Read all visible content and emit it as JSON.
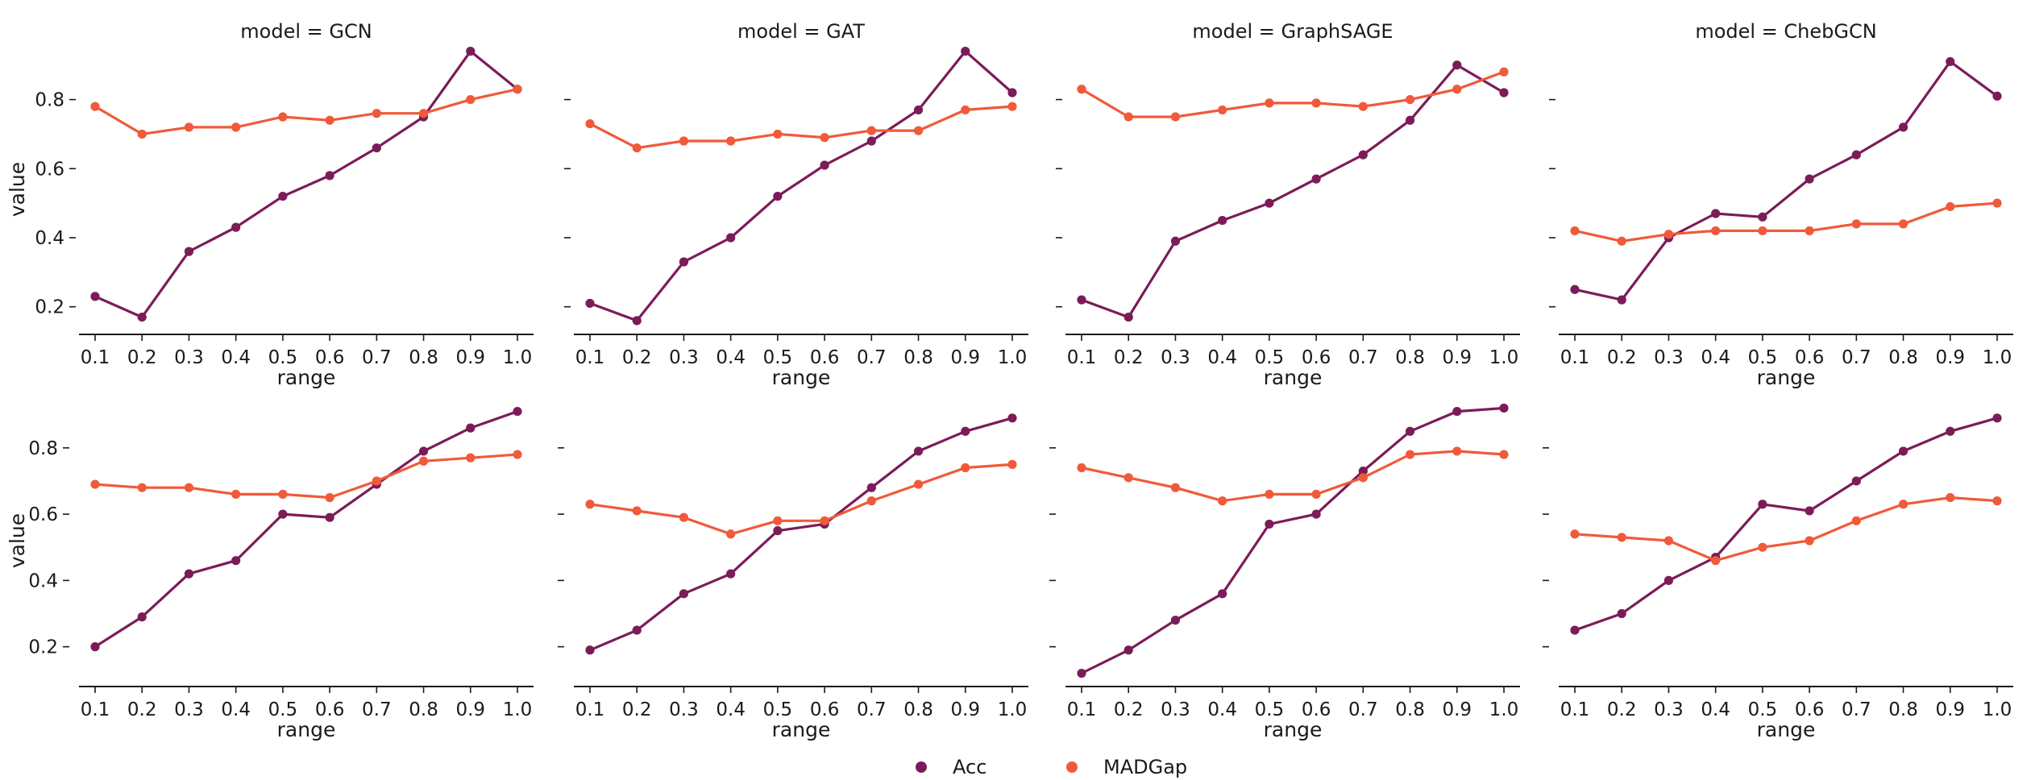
{
  "legend": {
    "position": "bottom-center",
    "items": [
      {
        "name": "Acc",
        "color": "#7b1c58"
      },
      {
        "name": "MADGap",
        "color": "#f05a3a"
      }
    ]
  },
  "chart_data": [
    {
      "type": "line",
      "row": 0,
      "col": 0,
      "title": "model = GCN",
      "xlabel": "range",
      "ylabel": "value",
      "x": [
        "0.1",
        "0.2",
        "0.3",
        "0.4",
        "0.5",
        "0.6",
        "0.7",
        "0.8",
        "0.9",
        "1.0"
      ],
      "ylim": [
        0.12,
        0.96
      ],
      "yticks": [
        "0.2",
        "0.4",
        "0.6",
        "0.8"
      ],
      "series": [
        {
          "name": "Acc",
          "color": "#7b1c58",
          "values": [
            0.23,
            0.17,
            0.36,
            0.43,
            0.52,
            0.58,
            0.66,
            0.75,
            0.94,
            0.83
          ]
        },
        {
          "name": "MADGap",
          "color": "#f05a3a",
          "values": [
            0.78,
            0.7,
            0.72,
            0.72,
            0.75,
            0.74,
            0.76,
            0.76,
            0.8,
            0.83
          ]
        }
      ]
    },
    {
      "type": "line",
      "row": 0,
      "col": 1,
      "title": "model = GAT",
      "xlabel": "range",
      "ylabel": "",
      "x": [
        "0.1",
        "0.2",
        "0.3",
        "0.4",
        "0.5",
        "0.6",
        "0.7",
        "0.8",
        "0.9",
        "1.0"
      ],
      "ylim": [
        0.12,
        0.96
      ],
      "yticks": [
        "",
        "",
        "",
        ""
      ],
      "series": [
        {
          "name": "Acc",
          "color": "#7b1c58",
          "values": [
            0.21,
            0.16,
            0.33,
            0.4,
            0.52,
            0.61,
            0.68,
            0.77,
            0.94,
            0.82
          ]
        },
        {
          "name": "MADGap",
          "color": "#f05a3a",
          "values": [
            0.73,
            0.66,
            0.68,
            0.68,
            0.7,
            0.69,
            0.71,
            0.71,
            0.77,
            0.78
          ]
        }
      ]
    },
    {
      "type": "line",
      "row": 0,
      "col": 2,
      "title": "model = GraphSAGE",
      "xlabel": "range",
      "ylabel": "",
      "x": [
        "0.1",
        "0.2",
        "0.3",
        "0.4",
        "0.5",
        "0.6",
        "0.7",
        "0.8",
        "0.9",
        "1.0"
      ],
      "ylim": [
        0.12,
        0.96
      ],
      "yticks": [
        "",
        "",
        "",
        ""
      ],
      "series": [
        {
          "name": "Acc",
          "color": "#7b1c58",
          "values": [
            0.22,
            0.17,
            0.39,
            0.45,
            0.5,
            0.57,
            0.64,
            0.74,
            0.9,
            0.82
          ]
        },
        {
          "name": "MADGap",
          "color": "#f05a3a",
          "values": [
            0.83,
            0.75,
            0.75,
            0.77,
            0.79,
            0.79,
            0.78,
            0.8,
            0.83,
            0.88
          ]
        }
      ]
    },
    {
      "type": "line",
      "row": 0,
      "col": 3,
      "title": "model = ChebGCN",
      "xlabel": "range",
      "ylabel": "",
      "x": [
        "0.1",
        "0.2",
        "0.3",
        "0.4",
        "0.5",
        "0.6",
        "0.7",
        "0.8",
        "0.9",
        "1.0"
      ],
      "ylim": [
        0.12,
        0.96
      ],
      "yticks": [
        "",
        "",
        "",
        ""
      ],
      "series": [
        {
          "name": "Acc",
          "color": "#7b1c58",
          "values": [
            0.25,
            0.22,
            0.4,
            0.47,
            0.46,
            0.57,
            0.64,
            0.72,
            0.91,
            0.81
          ]
        },
        {
          "name": "MADGap",
          "color": "#f05a3a",
          "values": [
            0.42,
            0.39,
            0.41,
            0.42,
            0.42,
            0.42,
            0.44,
            0.44,
            0.49,
            0.5
          ]
        }
      ]
    },
    {
      "type": "line",
      "row": 1,
      "col": 0,
      "title": "",
      "xlabel": "range",
      "ylabel": "value",
      "x": [
        "0.1",
        "0.2",
        "0.3",
        "0.4",
        "0.5",
        "0.6",
        "0.7",
        "0.8",
        "0.9",
        "1.0"
      ],
      "ylim": [
        0.08,
        0.96
      ],
      "yticks": [
        "0.2",
        "0.4",
        "0.6",
        "0.8"
      ],
      "series": [
        {
          "name": "Acc",
          "color": "#7b1c58",
          "values": [
            0.2,
            0.29,
            0.42,
            0.46,
            0.6,
            0.59,
            0.69,
            0.79,
            0.86,
            0.91
          ]
        },
        {
          "name": "MADGap",
          "color": "#f05a3a",
          "values": [
            0.69,
            0.68,
            0.68,
            0.66,
            0.66,
            0.65,
            0.7,
            0.76,
            0.77,
            0.78
          ]
        }
      ]
    },
    {
      "type": "line",
      "row": 1,
      "col": 1,
      "title": "",
      "xlabel": "range",
      "ylabel": "",
      "x": [
        "0.1",
        "0.2",
        "0.3",
        "0.4",
        "0.5",
        "0.6",
        "0.7",
        "0.8",
        "0.9",
        "1.0"
      ],
      "ylim": [
        0.08,
        0.96
      ],
      "yticks": [
        "",
        "",
        "",
        ""
      ],
      "series": [
        {
          "name": "Acc",
          "color": "#7b1c58",
          "values": [
            0.19,
            0.25,
            0.36,
            0.42,
            0.55,
            0.57,
            0.68,
            0.79,
            0.85,
            0.89
          ]
        },
        {
          "name": "MADGap",
          "color": "#f05a3a",
          "values": [
            0.63,
            0.61,
            0.59,
            0.54,
            0.58,
            0.58,
            0.64,
            0.69,
            0.74,
            0.75
          ]
        }
      ]
    },
    {
      "type": "line",
      "row": 1,
      "col": 2,
      "title": "",
      "xlabel": "range",
      "ylabel": "",
      "x": [
        "0.1",
        "0.2",
        "0.3",
        "0.4",
        "0.5",
        "0.6",
        "0.7",
        "0.8",
        "0.9",
        "1.0"
      ],
      "ylim": [
        0.08,
        0.96
      ],
      "yticks": [
        "",
        "",
        "",
        ""
      ],
      "series": [
        {
          "name": "Acc",
          "color": "#7b1c58",
          "values": [
            0.12,
            0.19,
            0.28,
            0.36,
            0.57,
            0.6,
            0.73,
            0.85,
            0.91,
            0.92
          ]
        },
        {
          "name": "MADGap",
          "color": "#f05a3a",
          "values": [
            0.74,
            0.71,
            0.68,
            0.64,
            0.66,
            0.66,
            0.71,
            0.78,
            0.79,
            0.78
          ]
        }
      ]
    },
    {
      "type": "line",
      "row": 1,
      "col": 3,
      "title": "",
      "xlabel": "range",
      "ylabel": "",
      "x": [
        "0.1",
        "0.2",
        "0.3",
        "0.4",
        "0.5",
        "0.6",
        "0.7",
        "0.8",
        "0.9",
        "1.0"
      ],
      "ylim": [
        0.08,
        0.96
      ],
      "yticks": [
        "",
        "",
        "",
        ""
      ],
      "series": [
        {
          "name": "Acc",
          "color": "#7b1c58",
          "values": [
            0.25,
            0.3,
            0.4,
            0.47,
            0.63,
            0.61,
            0.7,
            0.79,
            0.85,
            0.89
          ]
        },
        {
          "name": "MADGap",
          "color": "#f05a3a",
          "values": [
            0.54,
            0.53,
            0.52,
            0.46,
            0.5,
            0.52,
            0.58,
            0.63,
            0.65,
            0.64
          ]
        }
      ]
    }
  ]
}
